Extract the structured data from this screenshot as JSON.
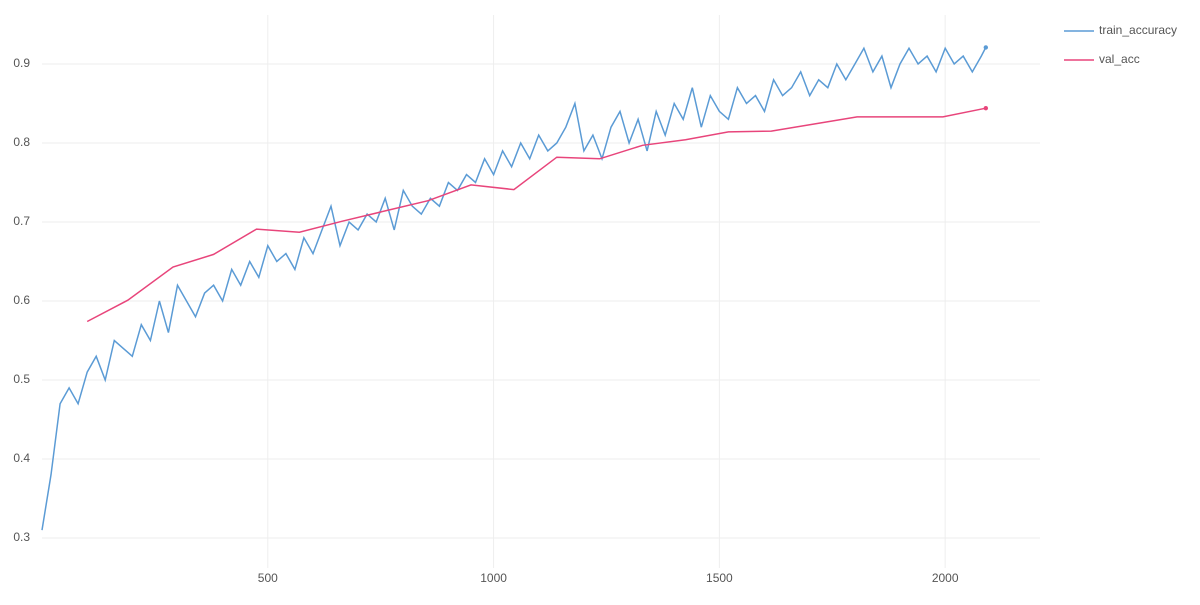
{
  "chart_data": {
    "type": "line",
    "xlim": [
      0,
      2210
    ],
    "ylim": [
      0.262,
      0.962
    ],
    "xticks": [
      500,
      1000,
      1500,
      2000
    ],
    "yticks": [
      0.3,
      0.4,
      0.5,
      0.6,
      0.7,
      0.8,
      0.9
    ],
    "grid": true,
    "legend": "top-right-outside",
    "series": [
      {
        "name": "train_accuracy",
        "color": "#5b9bd5",
        "x": [
          0,
          20,
          40,
          60,
          80,
          100,
          120,
          140,
          160,
          180,
          200,
          220,
          240,
          260,
          280,
          300,
          320,
          340,
          360,
          380,
          400,
          420,
          440,
          460,
          480,
          500,
          520,
          540,
          560,
          580,
          600,
          620,
          640,
          660,
          680,
          700,
          720,
          740,
          760,
          780,
          800,
          820,
          840,
          860,
          880,
          900,
          920,
          940,
          960,
          980,
          1000,
          1020,
          1040,
          1060,
          1080,
          1100,
          1120,
          1140,
          1160,
          1180,
          1200,
          1220,
          1240,
          1260,
          1280,
          1300,
          1320,
          1340,
          1360,
          1380,
          1400,
          1420,
          1440,
          1460,
          1480,
          1500,
          1520,
          1540,
          1560,
          1580,
          1600,
          1620,
          1640,
          1660,
          1680,
          1700,
          1720,
          1740,
          1760,
          1780,
          1800,
          1820,
          1840,
          1860,
          1880,
          1900,
          1920,
          1940,
          1960,
          1980,
          2000,
          2020,
          2040,
          2060,
          2080,
          2090
        ],
        "values": [
          0.31,
          0.38,
          0.47,
          0.49,
          0.47,
          0.51,
          0.53,
          0.5,
          0.55,
          0.54,
          0.53,
          0.57,
          0.55,
          0.6,
          0.56,
          0.62,
          0.6,
          0.58,
          0.61,
          0.62,
          0.6,
          0.64,
          0.62,
          0.65,
          0.63,
          0.67,
          0.65,
          0.66,
          0.64,
          0.68,
          0.66,
          0.69,
          0.72,
          0.67,
          0.7,
          0.69,
          0.71,
          0.7,
          0.73,
          0.69,
          0.74,
          0.72,
          0.71,
          0.73,
          0.72,
          0.75,
          0.74,
          0.76,
          0.75,
          0.78,
          0.76,
          0.79,
          0.77,
          0.8,
          0.78,
          0.81,
          0.79,
          0.8,
          0.82,
          0.85,
          0.79,
          0.81,
          0.78,
          0.82,
          0.84,
          0.8,
          0.83,
          0.79,
          0.84,
          0.81,
          0.85,
          0.83,
          0.87,
          0.82,
          0.86,
          0.84,
          0.83,
          0.87,
          0.85,
          0.86,
          0.84,
          0.88,
          0.86,
          0.87,
          0.89,
          0.86,
          0.88,
          0.87,
          0.9,
          0.88,
          0.9,
          0.92,
          0.89,
          0.91,
          0.87,
          0.9,
          0.92,
          0.9,
          0.91,
          0.89,
          0.92,
          0.9,
          0.91,
          0.89,
          0.91,
          0.921
        ]
      },
      {
        "name": "val_acc",
        "color": "#e8457b",
        "x": [
          100,
          190,
          290,
          380,
          475,
          570,
          665,
          760,
          855,
          950,
          1045,
          1140,
          1235,
          1330,
          1425,
          1520,
          1615,
          1710,
          1805,
          1995,
          2090
        ],
        "values": [
          0.574,
          0.601,
          0.643,
          0.659,
          0.691,
          0.687,
          0.701,
          0.714,
          0.727,
          0.747,
          0.741,
          0.782,
          0.78,
          0.797,
          0.804,
          0.814,
          0.815,
          0.824,
          0.833,
          0.833,
          0.844
        ]
      }
    ]
  }
}
